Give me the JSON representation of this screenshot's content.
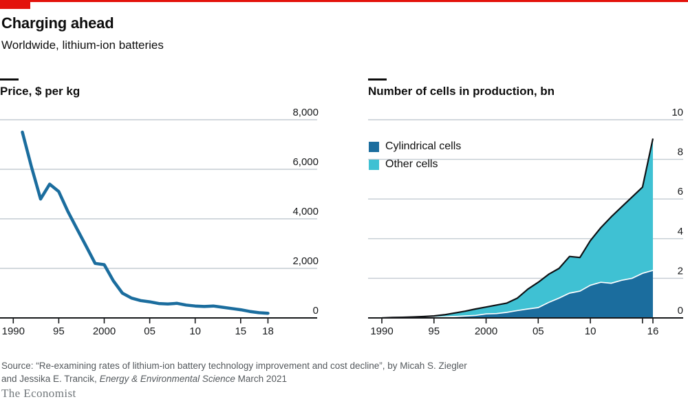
{
  "page": {
    "title": "Charging ahead",
    "subtitle": "Worldwide, lithium-ion batteries",
    "source_prefix": "Source: “Re-examining rates of lithium-ion battery technology improvement and cost decline”, by Micah S. Ziegler and Jessika E. Trancik, ",
    "source_italic": "Energy & Environmental Science",
    "source_suffix": " March 2021",
    "brand": "The Economist"
  },
  "colors": {
    "red": "#E3120B",
    "dark_blue": "#1B6D9E",
    "cyan": "#3FC1D3",
    "grid": "#C3CBD2",
    "axis": "#16181A",
    "text": "#0D0D0D",
    "separator_white": "#FFFFFF",
    "outline_black": "#0E1114",
    "source_text": "#53585C",
    "brand_text": "#6F7579"
  },
  "chart_data": [
    {
      "type": "line",
      "title": "Price, $ per kg",
      "xlabel": "",
      "ylabel": "$ per kg",
      "xlim": [
        1990,
        2019
      ],
      "ylim": [
        0,
        8000
      ],
      "grid": "horizontal",
      "x": [
        1991,
        1992,
        1993,
        1994,
        1995,
        1996,
        1997,
        1998,
        1999,
        2000,
        2001,
        2002,
        2003,
        2004,
        2005,
        2006,
        2007,
        2008,
        2009,
        2010,
        2011,
        2012,
        2013,
        2014,
        2015,
        2016,
        2017,
        2018
      ],
      "values": [
        7500,
        6100,
        4800,
        5400,
        5100,
        4300,
        3600,
        2900,
        2200,
        2150,
        1500,
        1000,
        800,
        700,
        650,
        580,
        560,
        590,
        520,
        480,
        460,
        480,
        430,
        380,
        330,
        260,
        210,
        190
      ],
      "x_ticks": [
        {
          "v": 1990,
          "label": "1990"
        },
        {
          "v": 1995,
          "label": "95"
        },
        {
          "v": 2000,
          "label": "2000"
        },
        {
          "v": 2005,
          "label": "05"
        },
        {
          "v": 2010,
          "label": "10"
        },
        {
          "v": 2015,
          "label": "15"
        },
        {
          "v": 2018,
          "label": "18"
        }
      ],
      "y_ticks": [
        {
          "v": 0,
          "label": "0"
        },
        {
          "v": 2000,
          "label": "2,000"
        },
        {
          "v": 4000,
          "label": "4,000"
        },
        {
          "v": 6000,
          "label": "6,000"
        },
        {
          "v": 8000,
          "label": "8,000"
        }
      ],
      "line_color": "#1B6D9E"
    },
    {
      "type": "area",
      "title": "Number of cells in production, bn",
      "xlabel": "",
      "ylabel": "bn cells",
      "xlim": [
        1990,
        2019
      ],
      "ylim": [
        0,
        10
      ],
      "grid": "horizontal",
      "stacked": true,
      "legend_position": "top-left-inside",
      "x": [
        1990,
        1991,
        1992,
        1993,
        1994,
        1995,
        1996,
        1997,
        1998,
        1999,
        2000,
        2001,
        2002,
        2003,
        2004,
        2005,
        2006,
        2007,
        2008,
        2009,
        2010,
        2011,
        2012,
        2013,
        2014,
        2015,
        2016
      ],
      "series": [
        {
          "name": "Cylindrical cells",
          "color": "#1B6D9E",
          "values": [
            0,
            0.01,
            0.01,
            0.02,
            0.02,
            0.03,
            0.05,
            0.07,
            0.1,
            0.13,
            0.2,
            0.22,
            0.28,
            0.37,
            0.45,
            0.52,
            0.78,
            1.0,
            1.25,
            1.35,
            1.65,
            1.8,
            1.75,
            1.9,
            2.0,
            2.25,
            2.4
          ]
        },
        {
          "name": "Other cells",
          "color": "#3FC1D3",
          "values": [
            0,
            0.01,
            0.02,
            0.03,
            0.05,
            0.07,
            0.11,
            0.18,
            0.24,
            0.32,
            0.35,
            0.43,
            0.47,
            0.63,
            1.0,
            1.28,
            1.42,
            1.5,
            1.85,
            1.7,
            2.25,
            2.75,
            3.35,
            3.7,
            4.1,
            4.35,
            6.65
          ]
        }
      ],
      "totals": [
        0,
        0.02,
        0.03,
        0.05,
        0.07,
        0.1,
        0.16,
        0.25,
        0.34,
        0.45,
        0.55,
        0.65,
        0.75,
        1.0,
        1.45,
        1.8,
        2.2,
        2.5,
        3.1,
        3.05,
        3.9,
        4.55,
        5.1,
        5.6,
        6.1,
        6.6,
        9.05
      ],
      "x_ticks": [
        {
          "v": 1990,
          "label": "1990"
        },
        {
          "v": 1995,
          "label": "95"
        },
        {
          "v": 2000,
          "label": "2000"
        },
        {
          "v": 2005,
          "label": "05"
        },
        {
          "v": 2010,
          "label": "10"
        },
        {
          "v": 2015,
          "label": ""
        },
        {
          "v": 2016,
          "label": "16"
        }
      ],
      "y_ticks": [
        {
          "v": 0,
          "label": "0"
        },
        {
          "v": 2,
          "label": "2"
        },
        {
          "v": 4,
          "label": "4"
        },
        {
          "v": 6,
          "label": "6"
        },
        {
          "v": 8,
          "label": "8"
        },
        {
          "v": 10,
          "label": "10"
        }
      ]
    }
  ]
}
